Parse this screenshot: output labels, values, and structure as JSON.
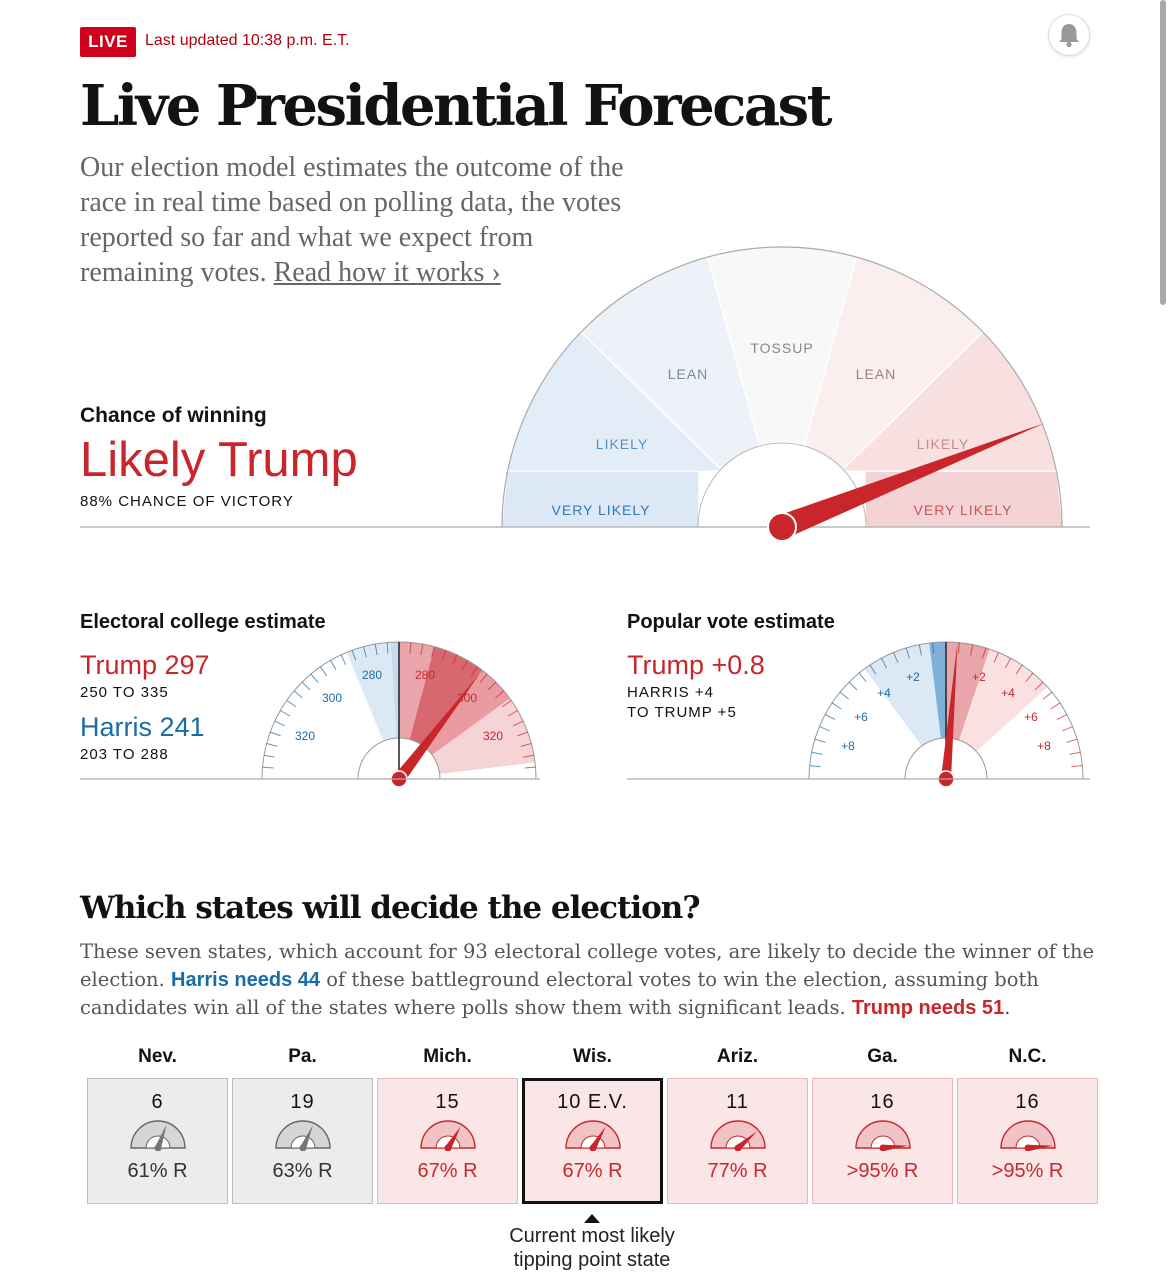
{
  "header": {
    "live_badge": "LIVE",
    "last_updated": "Last updated 10:38 p.m. E.T.",
    "title": "Live Presidential Forecast",
    "intro_text": "Our election model estimates the outcome of the race in real time based on polling data, the votes reported so far and what we expect from remaining votes. ",
    "intro_link": "Read how it works ›"
  },
  "chance_of_winning": {
    "label": "Chance of winning",
    "value": "Likely Trump",
    "chance_text": "88% CHANCE OF VICTORY",
    "trump_probability": 0.88,
    "gauge_labels": {
      "very_likely_left": "VERY LIKELY",
      "likely_left": "LIKELY",
      "lean_left": "LEAN",
      "tossup": "TOSSUP",
      "lean_right": "LEAN",
      "likely_right": "LIKELY",
      "very_likely_right": "VERY LIKELY"
    }
  },
  "electoral_college": {
    "label": "Electoral college estimate",
    "trump_value": "Trump 297",
    "trump_range": "250 TO 335",
    "harris_value": "Harris 241",
    "harris_range": "203 TO 288",
    "trump_estimate": 297,
    "tick_labels": {
      "left_320": "320",
      "left_300": "300",
      "left_280": "280",
      "right_280": "280",
      "right_300": "300",
      "right_320": "320"
    }
  },
  "popular_vote": {
    "label": "Popular vote estimate",
    "trump_value": "Trump +0.8",
    "range_line1": "HARRIS +4",
    "range_line2": "TO TRUMP +5",
    "trump_margin": 0.8,
    "tick_labels": {
      "left_8": "+8",
      "left_6": "+6",
      "left_4": "+4",
      "left_2": "+2",
      "right_2": "+2",
      "right_4": "+4",
      "right_6": "+6",
      "right_8": "+8"
    }
  },
  "states_section": {
    "title": "Which states will decide the election?",
    "desc_part1": "These seven states, which account for 93 electoral college votes, are likely to decide the winner of the election. ",
    "harris_needs": "Harris needs 44",
    "desc_part2": " of these battleground electoral votes to win the election, assuming both candidates win all of the states where polls show them with significant leads. ",
    "trump_needs": "Trump needs 51",
    "desc_part3": ".",
    "states": [
      {
        "name": "Nev.",
        "ev": "6",
        "prob": "61% R",
        "trump_probability": 0.61,
        "style": "gray"
      },
      {
        "name": "Pa.",
        "ev": "19",
        "prob": "63% R",
        "trump_probability": 0.63,
        "style": "gray"
      },
      {
        "name": "Mich.",
        "ev": "15",
        "prob": "67% R",
        "trump_probability": 0.67,
        "style": "pink"
      },
      {
        "name": "Wis.",
        "ev": "10  E.V.",
        "prob": "67% R",
        "trump_probability": 0.67,
        "style": "pink"
      },
      {
        "name": "Ariz.",
        "ev": "11",
        "prob": "77% R",
        "trump_probability": 0.77,
        "style": "pink"
      },
      {
        "name": "Ga.",
        "ev": "16",
        "prob": ">95% R",
        "trump_probability": 0.97,
        "style": "pink"
      },
      {
        "name": "N.C.",
        "ev": "16",
        "prob": ">95% R",
        "trump_probability": 0.97,
        "style": "pink"
      }
    ],
    "tipping_text": "Current most likely tipping point state"
  },
  "colors": {
    "trump_red": "#c9262c",
    "harris_blue": "#1a6ca8",
    "live_red": "#d0021b"
  }
}
